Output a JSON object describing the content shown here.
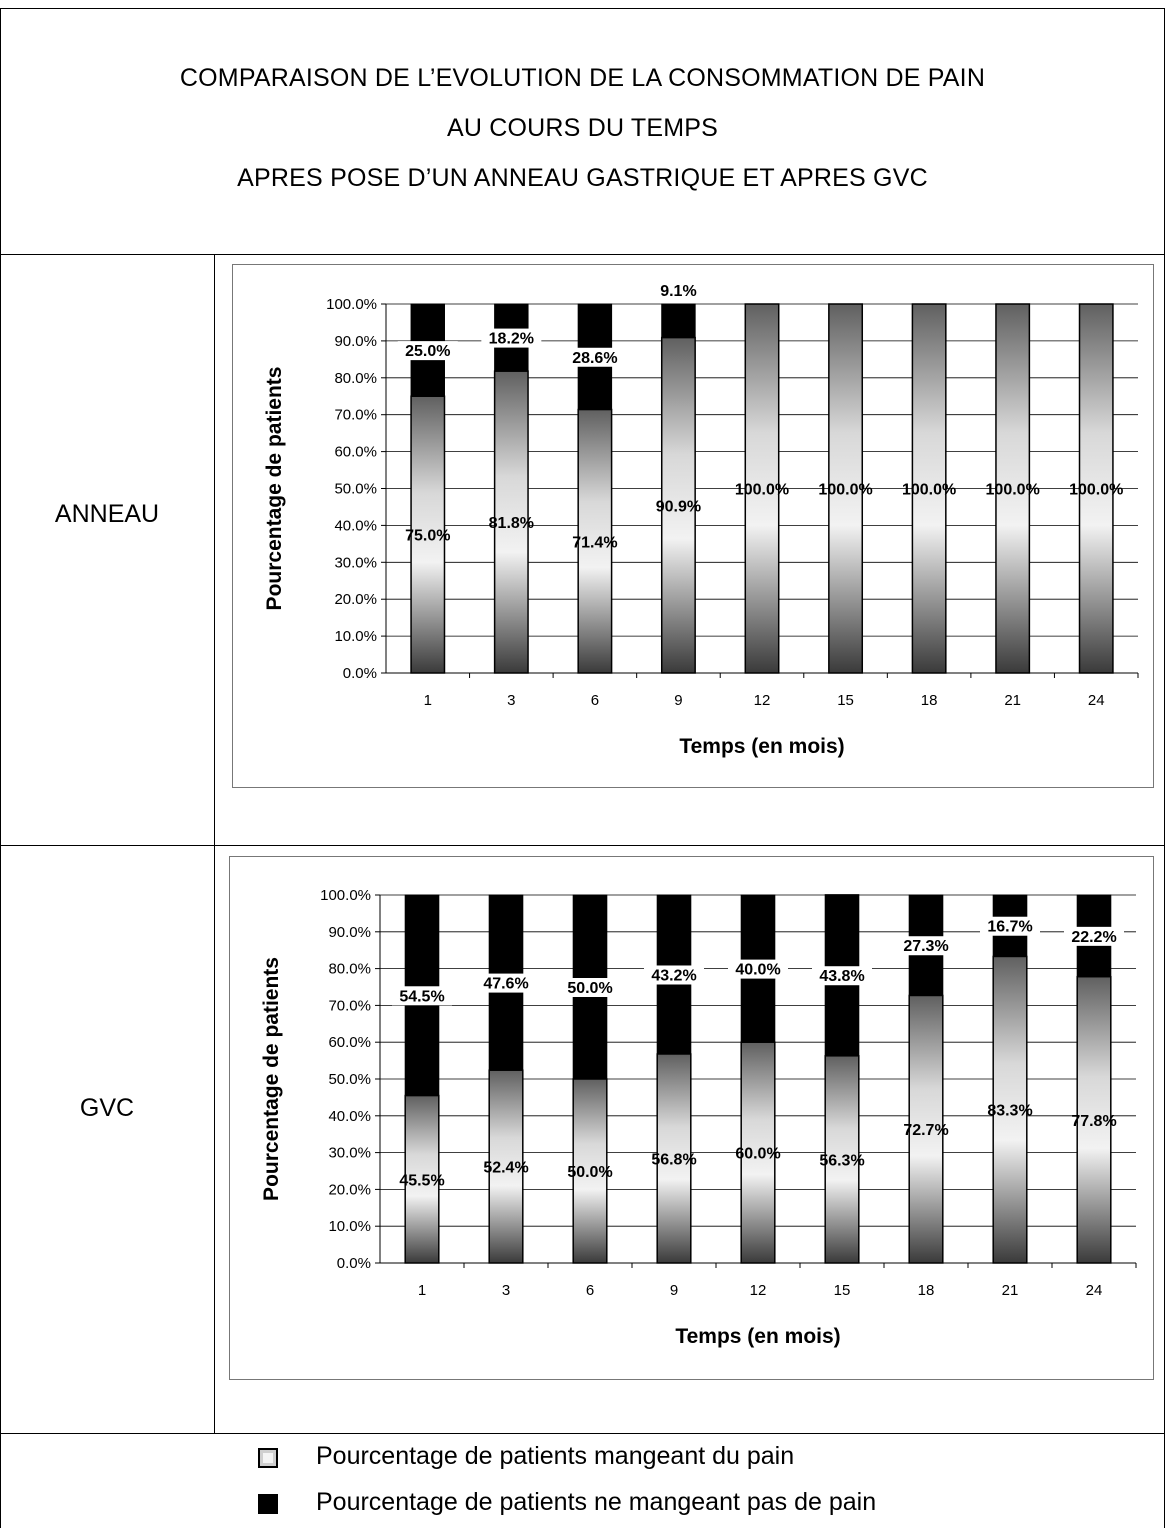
{
  "title": {
    "line1": "COMPARAISON DE L’EVOLUTION DE LA CONSOMMATION DE PAIN",
    "line2": "AU COURS DU TEMPS",
    "line3": "APRES POSE D’UN ANNEAU GASTRIQUE ET APRES GVC"
  },
  "rows": [
    {
      "label": "ANNEAU"
    },
    {
      "label": "GVC"
    }
  ],
  "legend": {
    "eating": "Pourcentage de patients mangeant du pain",
    "not_eating": "Pourcentage de patients ne mangeant pas de pain"
  },
  "colors": {
    "eating_light": "#f2f2f2",
    "eating_dark": "#3a3a3a",
    "not_eating": "#000000",
    "grid": "#000000"
  },
  "chart_data": [
    {
      "type": "bar",
      "stacked": true,
      "grid": true,
      "xlabel": "Temps (en mois)",
      "ylabel": "Pourcentage de patients",
      "ylim": [
        0,
        100
      ],
      "yticks": [
        "0.0%",
        "10.0%",
        "20.0%",
        "30.0%",
        "40.0%",
        "50.0%",
        "60.0%",
        "70.0%",
        "80.0%",
        "90.0%",
        "100.0%"
      ],
      "categories": [
        "1",
        "3",
        "6",
        "9",
        "12",
        "15",
        "18",
        "21",
        "24"
      ],
      "series": [
        {
          "values": [
            75.0,
            81.8,
            71.4,
            90.9,
            100.0,
            100.0,
            100.0,
            100.0,
            100.0
          ],
          "labels": [
            "75.0%",
            "81.8%",
            "71.4%",
            "90.9%",
            "100.0%",
            "100.0%",
            "100.0%",
            "100.0%",
            "100.0%"
          ]
        },
        {
          "values": [
            25.0,
            18.2,
            28.6,
            9.1,
            0,
            0,
            0,
            0,
            0
          ],
          "labels": [
            "25.0%",
            "18.2%",
            "28.6%",
            "9.1%",
            "",
            "",
            "",
            "",
            ""
          ]
        }
      ]
    },
    {
      "type": "bar",
      "stacked": true,
      "grid": true,
      "xlabel": "Temps (en mois)",
      "ylabel": "Pourcentage de patients",
      "ylim": [
        0,
        100
      ],
      "yticks": [
        "0.0%",
        "10.0%",
        "20.0%",
        "30.0%",
        "40.0%",
        "50.0%",
        "60.0%",
        "70.0%",
        "80.0%",
        "90.0%",
        "100.0%"
      ],
      "categories": [
        "1",
        "3",
        "6",
        "9",
        "12",
        "15",
        "18",
        "21",
        "24"
      ],
      "series": [
        {
          "values": [
            45.5,
            52.4,
            50.0,
            56.8,
            60.0,
            56.3,
            72.7,
            83.3,
            77.8
          ],
          "labels": [
            "45.5%",
            "52.4%",
            "50.0%",
            "56.8%",
            "60.0%",
            "56.3%",
            "72.7%",
            "83.3%",
            "77.8%"
          ]
        },
        {
          "values": [
            54.5,
            47.6,
            50.0,
            43.2,
            40.0,
            43.8,
            27.3,
            16.7,
            22.2
          ],
          "labels": [
            "54.5%",
            "47.6%",
            "50.0%",
            "43.2%",
            "40.0%",
            "43.8%",
            "27.3%",
            "16.7%",
            "22.2%"
          ]
        }
      ]
    }
  ]
}
